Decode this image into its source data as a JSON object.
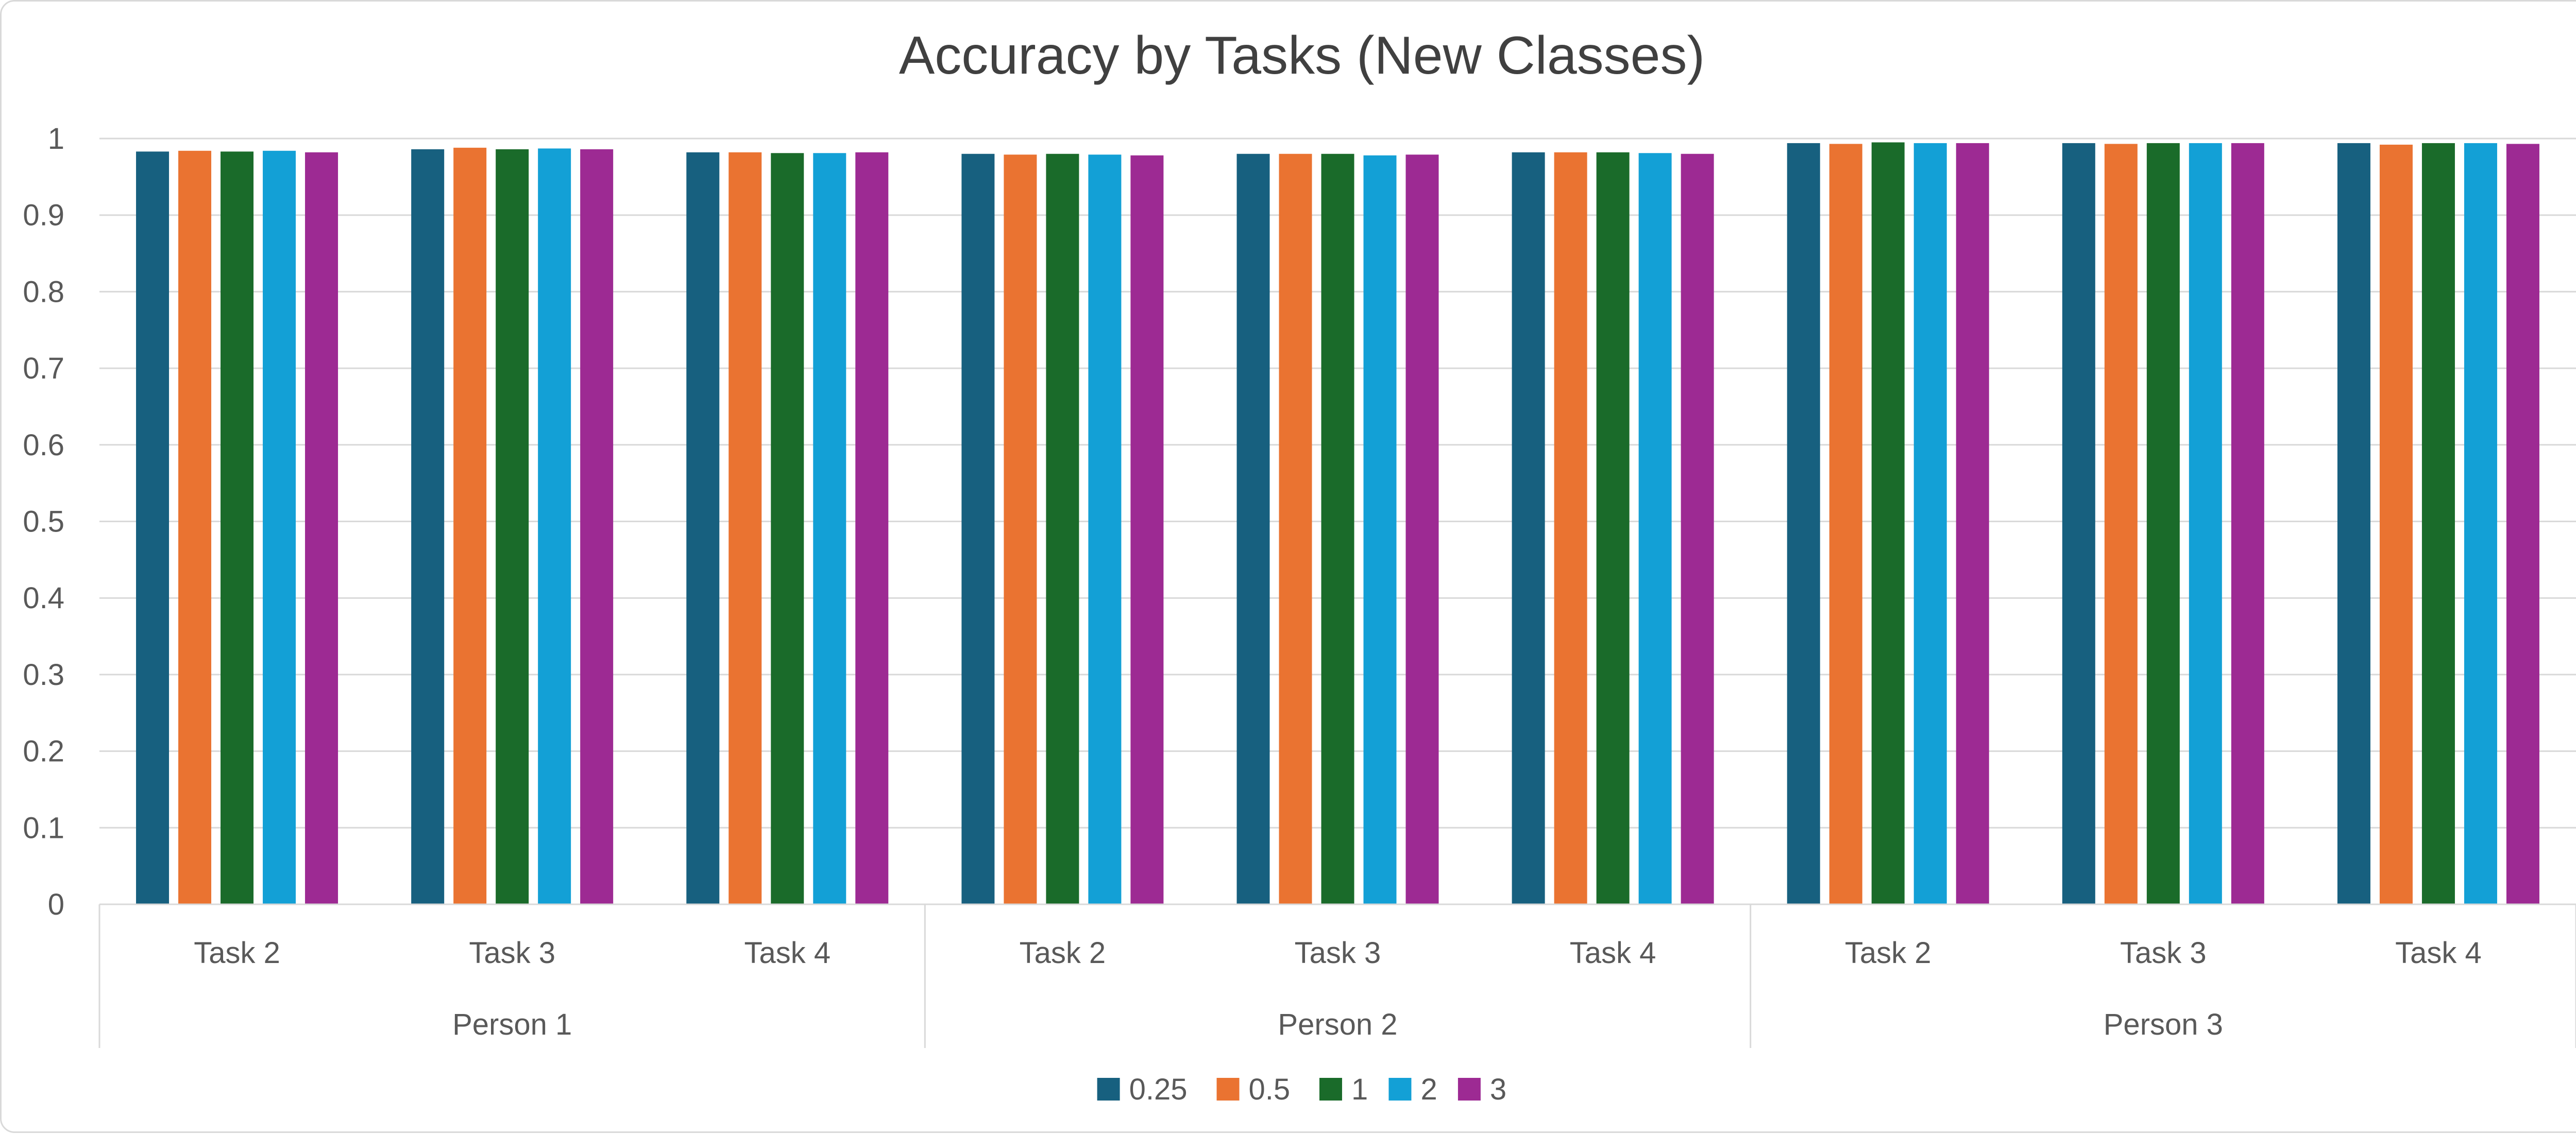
{
  "chart_data": {
    "type": "bar",
    "title": "Accuracy by Tasks (New Classes)",
    "xlabel": "",
    "ylabel": "",
    "ylim": [
      0,
      1
    ],
    "yticks": [
      "0",
      "0.1",
      "0.2",
      "0.3",
      "0.4",
      "0.5",
      "0.6",
      "0.7",
      "0.8",
      "0.9",
      "1"
    ],
    "grid": true,
    "legend_position": "bottom",
    "groups": [
      "Person 1",
      "Person 2",
      "Person 3"
    ],
    "categories": [
      {
        "group": "Person 1",
        "label": "Task 2"
      },
      {
        "group": "Person 1",
        "label": "Task 3"
      },
      {
        "group": "Person 1",
        "label": "Task 4"
      },
      {
        "group": "Person 2",
        "label": "Task 2"
      },
      {
        "group": "Person 2",
        "label": "Task 3"
      },
      {
        "group": "Person 2",
        "label": "Task 4"
      },
      {
        "group": "Person 3",
        "label": "Task 2"
      },
      {
        "group": "Person 3",
        "label": "Task 3"
      },
      {
        "group": "Person 3",
        "label": "Task 4"
      }
    ],
    "series": [
      {
        "name": "0.25",
        "color": "#17607f",
        "values": [
          0.983,
          0.986,
          0.982,
          0.98,
          0.98,
          0.982,
          0.994,
          0.994,
          0.994
        ]
      },
      {
        "name": "0.5",
        "color": "#ea7331",
        "values": [
          0.984,
          0.988,
          0.982,
          0.979,
          0.98,
          0.982,
          0.993,
          0.993,
          0.992
        ]
      },
      {
        "name": "1",
        "color": "#1a6b2a",
        "values": [
          0.983,
          0.986,
          0.981,
          0.98,
          0.98,
          0.982,
          0.995,
          0.994,
          0.994
        ]
      },
      {
        "name": "2",
        "color": "#13a0d6",
        "values": [
          0.984,
          0.987,
          0.981,
          0.979,
          0.978,
          0.981,
          0.994,
          0.994,
          0.994
        ]
      },
      {
        "name": "3",
        "color": "#9d2a93",
        "values": [
          0.982,
          0.986,
          0.982,
          0.978,
          0.979,
          0.98,
          0.994,
          0.994,
          0.993
        ]
      }
    ]
  }
}
